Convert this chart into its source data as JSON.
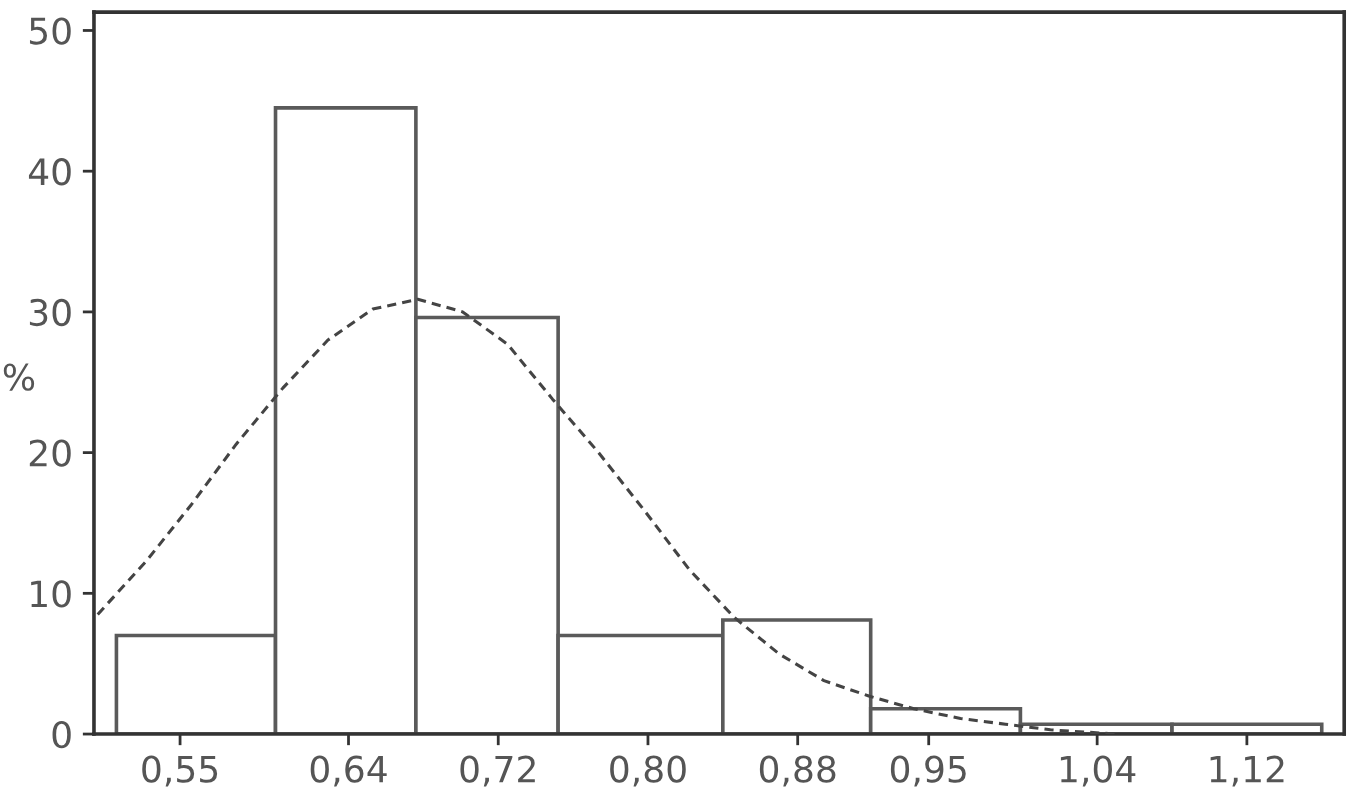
{
  "chart_data": {
    "type": "histogram",
    "ylabel": "%",
    "color": "#ffffff",
    "bins": [
      0.516,
      0.601,
      0.676,
      0.752,
      0.84,
      0.919,
      0.999,
      1.08,
      1.16
    ],
    "values": [
      7,
      44.5,
      29.6,
      7,
      8.1,
      1.8,
      0.7,
      0.7
    ],
    "series": [
      {
        "type": "line",
        "color": "#444444",
        "line_style": "dashed",
        "marker": "none",
        "x": [
          0.506,
          0.532,
          0.556,
          0.58,
          0.605,
          0.629,
          0.653,
          0.677,
          0.701,
          0.725,
          0.749,
          0.773,
          0.798,
          0.822,
          0.846,
          0.87,
          0.894,
          0.918,
          0.942,
          0.967,
          0.991,
          1.015,
          1.05
        ],
        "values": [
          8.5,
          12.3,
          16.3,
          20.6,
          24.6,
          28.0,
          30.2,
          30.9,
          30.0,
          27.7,
          23.8,
          20.1,
          15.9,
          11.7,
          8.3,
          5.7,
          3.8,
          2.7,
          1.8,
          1.1,
          0.7,
          0.3,
          0
        ]
      }
    ],
    "xlim": [
      0.504,
      1.172
    ],
    "xticks": [
      {
        "value": 0.55,
        "label": "0,55"
      },
      {
        "value": 0.64,
        "label": "0,64"
      },
      {
        "value": 0.72,
        "label": "0,72"
      },
      {
        "value": 0.8,
        "label": "0,80"
      },
      {
        "value": 0.88,
        "label": "0,88"
      },
      {
        "value": 0.95,
        "label": "0,95"
      },
      {
        "value": 1.04,
        "label": "1,04"
      },
      {
        "value": 1.12,
        "label": "1,12"
      }
    ],
    "ylim": [
      0,
      51.3
    ],
    "yticks": [
      0,
      10,
      20,
      30,
      40,
      50
    ],
    "grid": false,
    "legend": false
  }
}
